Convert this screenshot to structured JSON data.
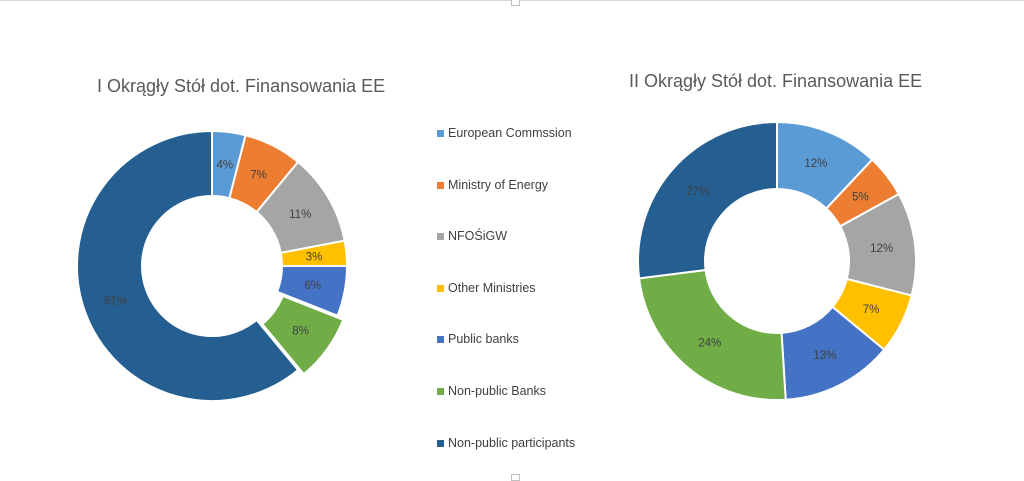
{
  "chart_data": [
    {
      "type": "pie",
      "variant": "donut",
      "title": "I Okrągły Stół dot. Finansowania EE",
      "slices": [
        {
          "label": "European Commssion",
          "value": 4,
          "display": "4%",
          "color": "#5B9BD5"
        },
        {
          "label": "Ministry of Energy",
          "value": 7,
          "display": "7%",
          "color": "#ED7D31"
        },
        {
          "label": "NFOŚiGW",
          "value": 11,
          "display": "11%",
          "color": "#A5A5A5"
        },
        {
          "label": "Other Ministries",
          "value": 3,
          "display": "3%",
          "color": "#FFC000"
        },
        {
          "label": "Public banks",
          "value": 6,
          "display": "6%",
          "color": "#4472C4"
        },
        {
          "label": "Non-public  Banks",
          "value": 8,
          "display": "8%",
          "color": "#70AD47",
          "exploded": true
        },
        {
          "label": "Non-public participants",
          "value": 61,
          "display": "61%",
          "color": "#255E91"
        }
      ]
    },
    {
      "type": "pie",
      "variant": "donut",
      "title": "II Okrągły Stół dot. Finansowania EE",
      "slices": [
        {
          "label": "European Commssion",
          "value": 12,
          "display": "12%",
          "color": "#5B9BD5"
        },
        {
          "label": "Ministry of Energy",
          "value": 5,
          "display": "5%",
          "color": "#ED7D31"
        },
        {
          "label": "NFOŚiGW",
          "value": 12,
          "display": "12%",
          "color": "#A5A5A5"
        },
        {
          "label": "Other Ministries",
          "value": 7,
          "display": "7%",
          "color": "#FFC000"
        },
        {
          "label": "Public banks",
          "value": 13,
          "display": "13%",
          "color": "#4472C4"
        },
        {
          "label": "Non-public  Banks",
          "value": 24,
          "display": "24%",
          "color": "#70AD47"
        },
        {
          "label": "Non-public participants",
          "value": 27,
          "display": "27%",
          "color": "#255E91"
        }
      ]
    }
  ],
  "legend": {
    "placement": "center",
    "items": [
      {
        "label": "European Commssion",
        "color": "#5B9BD5"
      },
      {
        "label": "Ministry of Energy",
        "color": "#ED7D31"
      },
      {
        "label": "NFOŚiGW",
        "color": "#A5A5A5"
      },
      {
        "label": "Other Ministries",
        "color": "#FFC000"
      },
      {
        "label": "Public banks",
        "color": "#4472C4"
      },
      {
        "label": "Non-public  Banks",
        "color": "#70AD47"
      },
      {
        "label": "Non-public participants",
        "color": "#255E91"
      }
    ]
  }
}
